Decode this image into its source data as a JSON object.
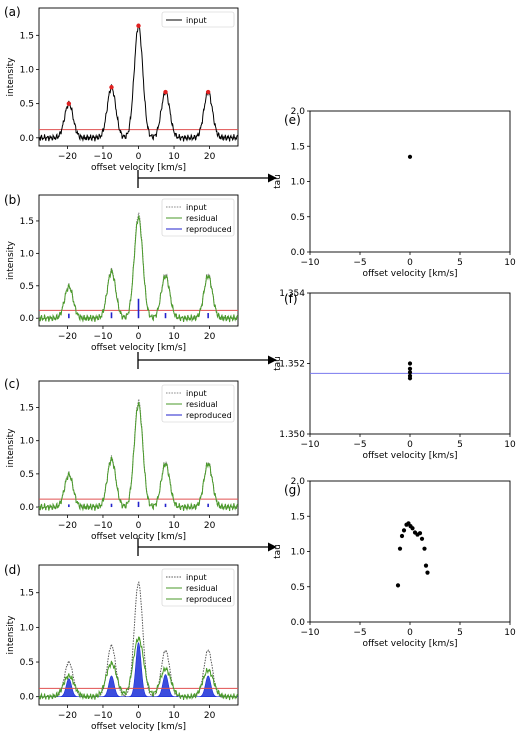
{
  "chart_data": [
    {
      "panel": "(a)",
      "type": "line",
      "xlabel": "offset velocity [km/s]",
      "ylabel": "intensity",
      "xlim": [
        -28,
        28
      ],
      "ylim": [
        -0.12,
        1.9
      ],
      "xticks": [
        -20,
        -10,
        0,
        10,
        20
      ],
      "yticks": [
        0.0,
        0.5,
        1.0,
        1.5
      ],
      "xticklabels": [
        "−20",
        "−10",
        "0",
        "10",
        "20"
      ],
      "yticklabels": [
        "0.0",
        "0.5",
        "1.0",
        "1.5"
      ],
      "legend": {
        "placement": "top-right",
        "entries": [
          "input"
        ]
      },
      "threshold": {
        "y": 0.12,
        "color": "#e05050"
      },
      "peaks": [
        {
          "x": -19.6,
          "y": 0.5
        },
        {
          "x": -7.6,
          "y": 0.74
        },
        {
          "x": 0.0,
          "y": 1.64
        },
        {
          "x": 7.6,
          "y": 0.67
        },
        {
          "x": 19.6,
          "y": 0.67
        }
      ],
      "series": [
        {
          "name": "input",
          "color": "#000000"
        }
      ]
    },
    {
      "panel": "(b)",
      "type": "line",
      "xlabel": "offset velocity [km/s]",
      "ylabel": "intensity",
      "xlim": [
        -28,
        28
      ],
      "ylim": [
        -0.12,
        1.9
      ],
      "xticks": [
        -20,
        -10,
        0,
        10,
        20
      ],
      "yticks": [
        0.0,
        0.5,
        1.0,
        1.5
      ],
      "xticklabels": [
        "−20",
        "−10",
        "0",
        "10",
        "20"
      ],
      "yticklabels": [
        "0.0",
        "0.5",
        "1.0",
        "1.5"
      ],
      "legend": {
        "placement": "top-right",
        "entries": [
          "input",
          "residual",
          "reproduced"
        ]
      },
      "threshold": {
        "y": 0.12,
        "color": "#e05050"
      },
      "peaks": [
        {
          "x": -19.6,
          "y": 0.5
        },
        {
          "x": -7.6,
          "y": 0.74
        },
        {
          "x": 0.0,
          "y": 1.6
        },
        {
          "x": 7.6,
          "y": 0.67
        },
        {
          "x": 19.6,
          "y": 0.67
        }
      ],
      "spikes": [
        {
          "x": -19.6,
          "y": 0.07
        },
        {
          "x": -7.6,
          "y": 0.09
        },
        {
          "x": 0.0,
          "y": 0.3
        },
        {
          "x": 7.6,
          "y": 0.08
        },
        {
          "x": 19.6,
          "y": 0.08
        }
      ],
      "series": [
        {
          "name": "input",
          "color": "#888888"
        },
        {
          "name": "residual",
          "color": "#4a9a2a"
        },
        {
          "name": "reproduced",
          "color": "#2222cc"
        }
      ]
    },
    {
      "panel": "(c)",
      "type": "line",
      "xlabel": "offset velocity [km/s]",
      "ylabel": "intensity",
      "xlim": [
        -28,
        28
      ],
      "ylim": [
        -0.12,
        1.9
      ],
      "xticks": [
        -20,
        -10,
        0,
        10,
        20
      ],
      "yticks": [
        0.0,
        0.5,
        1.0,
        1.5
      ],
      "xticklabels": [
        "−20",
        "−10",
        "0",
        "10",
        "20"
      ],
      "yticklabels": [
        "0.0",
        "0.5",
        "1.0",
        "1.5"
      ],
      "legend": {
        "placement": "top-right",
        "entries": [
          "input",
          "residual",
          "reproduced"
        ]
      },
      "threshold": {
        "y": 0.12,
        "color": "#e05050"
      },
      "peaks": [
        {
          "x": -19.6,
          "y": 0.5
        },
        {
          "x": -7.6,
          "y": 0.74
        },
        {
          "x": 0.0,
          "y": 1.6
        },
        {
          "x": 7.6,
          "y": 0.67
        },
        {
          "x": 19.6,
          "y": 0.67
        }
      ],
      "spikes": [
        {
          "x": -19.6,
          "y": 0.04
        },
        {
          "x": -7.6,
          "y": 0.05
        },
        {
          "x": 0.0,
          "y": 0.08
        },
        {
          "x": 7.6,
          "y": 0.05
        },
        {
          "x": 19.6,
          "y": 0.05
        }
      ],
      "series": [
        {
          "name": "input",
          "color": "#888888"
        },
        {
          "name": "residual",
          "color": "#4a9a2a"
        },
        {
          "name": "reproduced",
          "color": "#2222cc"
        }
      ]
    },
    {
      "panel": "(d)",
      "type": "line",
      "xlabel": "offset velocity [km/s]",
      "ylabel": "intensity",
      "xlim": [
        -28,
        28
      ],
      "ylim": [
        -0.12,
        1.9
      ],
      "xticks": [
        -20,
        -10,
        0,
        10,
        20
      ],
      "yticks": [
        0.0,
        0.5,
        1.0,
        1.5
      ],
      "xticklabels": [
        "−20",
        "−10",
        "0",
        "10",
        "20"
      ],
      "yticklabels": [
        "0.0",
        "0.5",
        "1.0",
        "1.5"
      ],
      "legend": {
        "placement": "top-right",
        "entries": [
          "input",
          "residual",
          "reproduced"
        ]
      },
      "threshold": {
        "y": 0.12,
        "color": "#e05050"
      },
      "input_peaks": [
        {
          "x": -19.6,
          "y": 0.5
        },
        {
          "x": -7.6,
          "y": 0.74
        },
        {
          "x": 0.0,
          "y": 1.64
        },
        {
          "x": 7.6,
          "y": 0.67
        },
        {
          "x": 19.6,
          "y": 0.67
        }
      ],
      "residual_peaks": [
        {
          "x": -19.6,
          "y": 0.3
        },
        {
          "x": -7.6,
          "y": 0.48
        },
        {
          "x": 0.0,
          "y": 0.84
        },
        {
          "x": 7.6,
          "y": 0.4
        },
        {
          "x": 19.6,
          "y": 0.38
        }
      ],
      "reproduced_peaks": [
        {
          "x": -19.6,
          "y": 0.26
        },
        {
          "x": -7.6,
          "y": 0.3
        },
        {
          "x": 0.0,
          "y": 0.78
        },
        {
          "x": 7.6,
          "y": 0.32
        },
        {
          "x": 19.6,
          "y": 0.3
        }
      ],
      "series": [
        {
          "name": "input",
          "color": "#555555"
        },
        {
          "name": "residual",
          "color": "#4a9a2a"
        },
        {
          "name": "reproduced",
          "color": "#1a2ed8"
        }
      ]
    },
    {
      "panel": "(e)",
      "type": "scatter",
      "xlabel": "offset velocity [km/s]",
      "ylabel": "tau",
      "xlim": [
        -10,
        10
      ],
      "ylim": [
        0.0,
        2.0
      ],
      "xticks": [
        -10,
        -5,
        0,
        5,
        10
      ],
      "yticks": [
        0.0,
        0.5,
        1.0,
        1.5,
        2.0
      ],
      "xticklabels": [
        "−10",
        "−5",
        "0",
        "5",
        "10"
      ],
      "yticklabels": [
        "0.0",
        "0.5",
        "1.0",
        "1.5",
        "2.0"
      ],
      "points": [
        {
          "x": 0.0,
          "y": 1.35
        }
      ]
    },
    {
      "panel": "(f)",
      "type": "scatter",
      "xlabel": "offset velocity [km/s]",
      "ylabel": "tau",
      "xlim": [
        -10,
        10
      ],
      "ylim": [
        1.35,
        1.354
      ],
      "xticks": [
        -10,
        -5,
        0,
        5,
        10
      ],
      "yticks": [
        1.35,
        1.352,
        1.354
      ],
      "xticklabels": [
        "−10",
        "−5",
        "0",
        "5",
        "10"
      ],
      "yticklabels": [
        "1.350",
        "1.352",
        "1.354"
      ],
      "hline": {
        "y": 1.35172,
        "color": "#7878ee"
      },
      "points": [
        {
          "x": 0.0,
          "y": 1.352
        },
        {
          "x": 0.0,
          "y": 1.35185
        },
        {
          "x": 0.0,
          "y": 1.35175
        },
        {
          "x": 0.0,
          "y": 1.35165
        },
        {
          "x": 0.0,
          "y": 1.35158
        }
      ]
    },
    {
      "panel": "(g)",
      "type": "scatter",
      "xlabel": "offset velocity [km/s]",
      "ylabel": "tau",
      "xlim": [
        -10,
        10
      ],
      "ylim": [
        0.0,
        2.0
      ],
      "xticks": [
        -10,
        -5,
        0,
        5,
        10
      ],
      "yticks": [
        0.0,
        0.5,
        1.0,
        1.5,
        2.0
      ],
      "xticklabels": [
        "−10",
        "−5",
        "0",
        "5",
        "10"
      ],
      "yticklabels": [
        "0.0",
        "0.5",
        "1.0",
        "1.5",
        "2.0"
      ],
      "points": [
        {
          "x": -1.2,
          "y": 0.52
        },
        {
          "x": -1.0,
          "y": 1.04
        },
        {
          "x": -0.8,
          "y": 1.22
        },
        {
          "x": -0.6,
          "y": 1.3
        },
        {
          "x": -0.35,
          "y": 1.38
        },
        {
          "x": -0.15,
          "y": 1.4
        },
        {
          "x": 0.05,
          "y": 1.36
        },
        {
          "x": 0.25,
          "y": 1.33
        },
        {
          "x": 0.5,
          "y": 1.27
        },
        {
          "x": 0.75,
          "y": 1.24
        },
        {
          "x": 1.0,
          "y": 1.26
        },
        {
          "x": 1.2,
          "y": 1.18
        },
        {
          "x": 1.45,
          "y": 1.04
        },
        {
          "x": 1.6,
          "y": 0.8
        },
        {
          "x": 1.75,
          "y": 0.7
        }
      ]
    }
  ]
}
